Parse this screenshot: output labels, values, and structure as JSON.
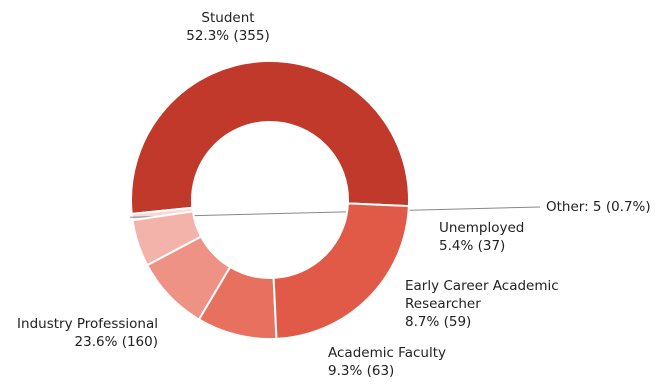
{
  "chart_data": {
    "type": "pie",
    "donut": true,
    "title": "",
    "slices": [
      {
        "name": "Student",
        "count": 355,
        "percent": 52.3,
        "value_label": "52.3% (355)",
        "color": "#c0392b"
      },
      {
        "name": "Other: 5 (0.7%)",
        "count": 5,
        "percent": 0.7,
        "value_label": "",
        "color": "#f9d9d4"
      },
      {
        "name": "Unemployed",
        "count": 37,
        "percent": 5.4,
        "value_label": "5.4% (37)",
        "color": "#f3b3aa"
      },
      {
        "name": "Early Career Academic Researcher",
        "name_lines": [
          "Early Career Academic",
          "Researcher"
        ],
        "count": 59,
        "percent": 8.7,
        "value_label": "8.7% (59)",
        "color": "#ee9286"
      },
      {
        "name": "Academic Faculty",
        "count": 63,
        "percent": 9.3,
        "value_label": "9.3% (63)",
        "color": "#e8705f"
      },
      {
        "name": "Industry Professional",
        "count": 160,
        "percent": 23.6,
        "value_label": "23.6% (160)",
        "color": "#e05a47"
      }
    ]
  }
}
